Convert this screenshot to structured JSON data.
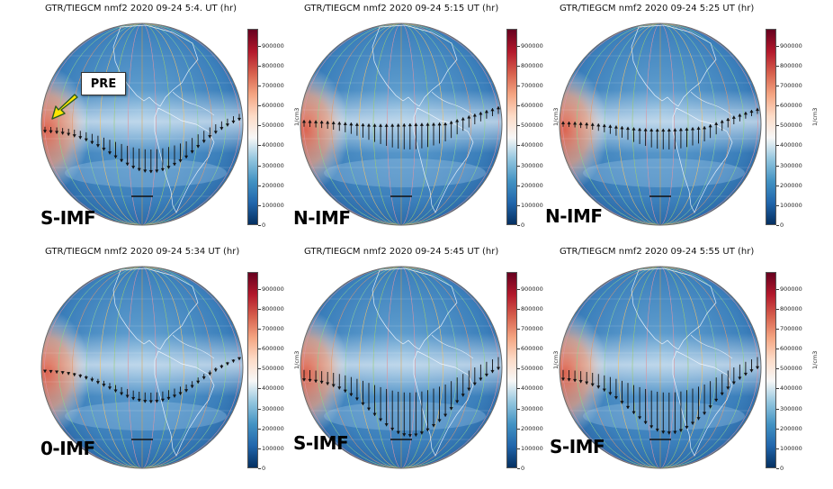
{
  "figure": {
    "colorbar": {
      "unit": "1/cm3",
      "ticks": [
        "0",
        "100000",
        "200000",
        "300000",
        "400000",
        "500000",
        "600000",
        "700000",
        "800000",
        "900000"
      ],
      "tick_values": [
        0,
        100000,
        200000,
        300000,
        400000,
        500000,
        600000,
        700000,
        800000,
        900000
      ],
      "max": 985000
    },
    "annotation": {
      "label": "PRE",
      "arrow_color": "#ffe600"
    },
    "panels": [
      {
        "title": "GTR/TIEGCM nmf2 2020 09-24 5:4. UT (hr)",
        "imf_label": "S-IMF",
        "arrow_dir": "down",
        "arrow_scale": 0.45,
        "pre_label": true
      },
      {
        "title": "GTR/TIEGCM nmf2 2020 09-24 5:15 UT (hr)",
        "imf_label": "N-IMF",
        "arrow_dir": "up",
        "arrow_scale": 0.5
      },
      {
        "title": "GTR/TIEGCM nmf2 2020 09-24 5:25 UT (hr)",
        "imf_label": "N-IMF",
        "arrow_dir": "up",
        "arrow_scale": 0.4
      },
      {
        "title": "GTR/TIEGCM nmf2 2020 09-24 5:34 UT (hr)",
        "imf_label": "0-IMF",
        "arrow_dir": "down",
        "arrow_scale": 0.2
      },
      {
        "title": "GTR/TIEGCM nmf2 2020 09-24 5:45 UT (hr)",
        "imf_label": "S-IMF",
        "arrow_dir": "down",
        "arrow_scale": 0.85
      },
      {
        "title": "GTR/TIEGCM nmf2 2020 09-24 5:55 UT (hr)",
        "imf_label": "S-IMF",
        "arrow_dir": "down",
        "arrow_scale": 0.8
      }
    ]
  }
}
